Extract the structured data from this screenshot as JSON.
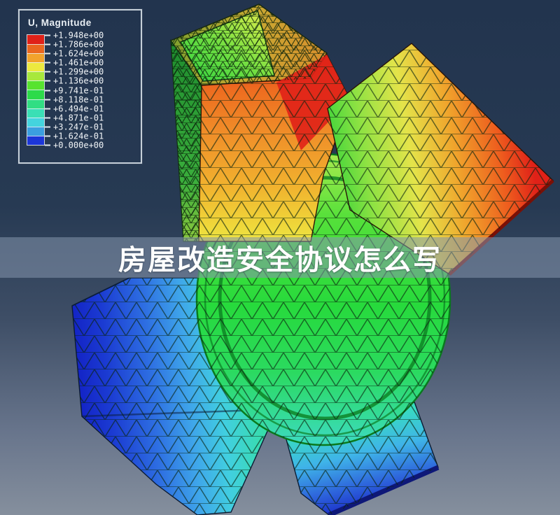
{
  "figure": {
    "description": "Finite-element contour plot of displacement magnitude on a meshed 3D part",
    "legend": {
      "title": "U, Magnitude",
      "tick_labels": [
        "+1.948e+00",
        "+1.786e+00",
        "+1.624e+00",
        "+1.461e+00",
        "+1.299e+00",
        "+1.136e+00",
        "+9.741e-01",
        "+8.118e-01",
        "+6.494e-01",
        "+4.871e-01",
        "+3.247e-01",
        "+1.624e-01",
        "+0.000e+00"
      ],
      "band_colors": [
        "#E02118",
        "#EA671F",
        "#F2A32C",
        "#EDE93F",
        "#A8E83C",
        "#57E32F",
        "#2CDB4A",
        "#31DE83",
        "#3ADFB5",
        "#44D4DE",
        "#3B9FE0",
        "#1C36D8"
      ]
    },
    "colors": {
      "background_top": "#22344E",
      "background_bottom": "#858F9D",
      "mesh_line": "#0A2410"
    }
  },
  "banner": {
    "text": "房屋改造安全协议怎么写",
    "text_color": "#FFFFFF",
    "background": "rgba(133,150,173,0.55)"
  }
}
